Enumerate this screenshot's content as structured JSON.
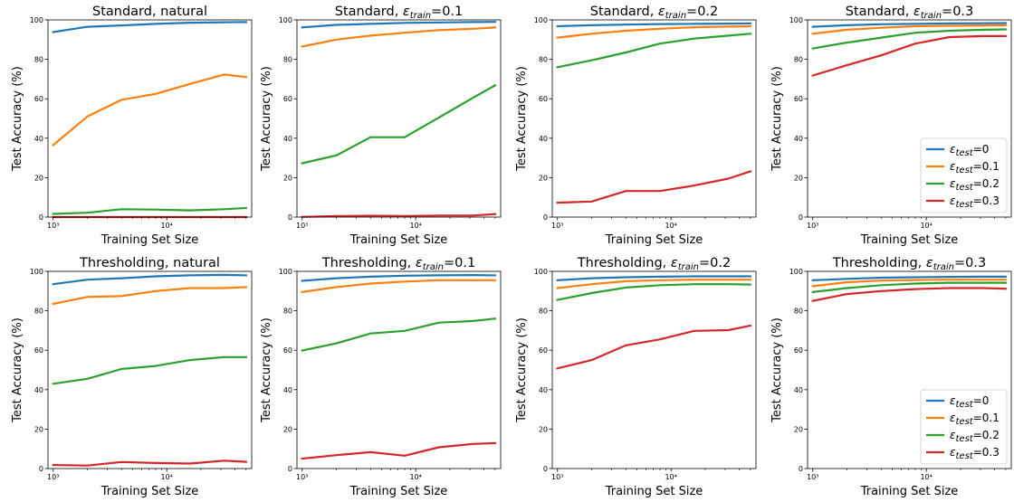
{
  "chart_data": [
    {
      "type": "line",
      "title": "Standard, natural",
      "title_eps": false,
      "xlabel": "Training Set Size",
      "ylabel": "Test Accuracy (%)",
      "xscale": "log",
      "xlim": [
        900,
        56000
      ],
      "ylim": [
        0,
        100
      ],
      "xticks": [
        1000,
        10000
      ],
      "xtick_labels": [
        "10³",
        "10⁴"
      ],
      "yticks": [
        0,
        20,
        40,
        60,
        80,
        100
      ],
      "legend": false,
      "x": [
        1000,
        2000,
        4000,
        8000,
        16000,
        32000,
        50000
      ],
      "series": [
        {
          "color": "#1f77b4",
          "values": [
            93.8,
            96.5,
            97.2,
            98.0,
            98.6,
            98.8,
            98.9
          ]
        },
        {
          "color": "#ff7f0e",
          "values": [
            36.5,
            51.0,
            59.5,
            62.5,
            67.5,
            72.3,
            71.0
          ]
        },
        {
          "color": "#2ca02c",
          "values": [
            1.6,
            2.2,
            4.0,
            3.8,
            3.4,
            4.0,
            4.6
          ]
        },
        {
          "color": "#d62728",
          "values": [
            0.0,
            0.0,
            0.0,
            0.0,
            0.0,
            0.0,
            0.0
          ]
        }
      ]
    },
    {
      "type": "line",
      "title": "Standard, ",
      "title_eps": true,
      "title_value": "0.1",
      "xlabel": "Training Set Size",
      "ylabel": "Test Accuracy (%)",
      "xscale": "log",
      "xlim": [
        900,
        56000
      ],
      "ylim": [
        0,
        100
      ],
      "xticks": [
        1000,
        10000
      ],
      "xtick_labels": [
        "10³",
        "10⁴"
      ],
      "yticks": [
        0,
        20,
        40,
        60,
        80,
        100
      ],
      "legend": false,
      "x": [
        1000,
        2000,
        4000,
        8000,
        16000,
        32000,
        50000
      ],
      "series": [
        {
          "color": "#1f77b4",
          "values": [
            96.2,
            97.5,
            98.0,
            98.5,
            98.7,
            98.9,
            99.0
          ]
        },
        {
          "color": "#ff7f0e",
          "values": [
            86.5,
            90.0,
            92.0,
            93.5,
            94.8,
            95.5,
            96.2
          ]
        },
        {
          "color": "#2ca02c",
          "values": [
            27.3,
            31.3,
            40.5,
            40.5,
            50.5,
            60.5,
            66.8
          ]
        },
        {
          "color": "#d62728",
          "values": [
            0.1,
            0.5,
            0.7,
            0.5,
            0.8,
            0.8,
            1.5
          ]
        }
      ]
    },
    {
      "type": "line",
      "title": "Standard, ",
      "title_eps": true,
      "title_value": "0.2",
      "xlabel": "Training Set Size",
      "ylabel": "Test Accuracy (%)",
      "xscale": "log",
      "xlim": [
        900,
        56000
      ],
      "ylim": [
        0,
        100
      ],
      "xticks": [
        1000,
        10000
      ],
      "xtick_labels": [
        "10³",
        "10⁴"
      ],
      "yticks": [
        0,
        20,
        40,
        60,
        80,
        100
      ],
      "legend": false,
      "x": [
        1000,
        2000,
        4000,
        8000,
        16000,
        32000,
        50000
      ],
      "series": [
        {
          "color": "#1f77b4",
          "values": [
            96.8,
            97.3,
            97.6,
            97.9,
            98.0,
            98.1,
            98.2
          ]
        },
        {
          "color": "#ff7f0e",
          "values": [
            91.0,
            93.0,
            94.5,
            95.5,
            96.3,
            96.6,
            96.8
          ]
        },
        {
          "color": "#2ca02c",
          "values": [
            76.0,
            79.5,
            83.5,
            88.0,
            90.5,
            92.0,
            93.0
          ]
        },
        {
          "color": "#d62728",
          "values": [
            7.3,
            7.9,
            13.2,
            13.2,
            16.0,
            19.5,
            23.2
          ]
        }
      ]
    },
    {
      "type": "line",
      "title": "Standard, ",
      "title_eps": true,
      "title_value": "0.3",
      "xlabel": "Training Set Size",
      "ylabel": "Test Accuracy (%)",
      "xscale": "log",
      "xlim": [
        900,
        56000
      ],
      "ylim": [
        0,
        100
      ],
      "xticks": [
        1000,
        10000
      ],
      "xtick_labels": [
        "10³",
        "10⁴"
      ],
      "yticks": [
        0,
        20,
        40,
        60,
        80,
        100
      ],
      "legend": true,
      "legend_position": "lower-right",
      "x": [
        1000,
        2000,
        4000,
        8000,
        16000,
        32000,
        50000
      ],
      "series": [
        {
          "color": "#1f77b4",
          "values": [
            96.5,
            97.3,
            97.8,
            98.0,
            98.2,
            98.3,
            98.4
          ]
        },
        {
          "color": "#ff7f0e",
          "values": [
            93.0,
            95.0,
            96.0,
            96.8,
            97.0,
            97.2,
            97.3
          ]
        },
        {
          "color": "#2ca02c",
          "values": [
            85.5,
            88.5,
            91.0,
            93.5,
            94.5,
            95.0,
            95.2
          ]
        },
        {
          "color": "#d62728",
          "values": [
            71.8,
            77.0,
            82.0,
            88.0,
            91.3,
            91.8,
            91.8
          ]
        }
      ]
    },
    {
      "type": "line",
      "title": "Thresholding, natural",
      "title_eps": false,
      "xlabel": "Training Set Size",
      "ylabel": "Test Accuracy (%)",
      "xscale": "log",
      "xlim": [
        900,
        56000
      ],
      "ylim": [
        0,
        100
      ],
      "xticks": [
        1000,
        10000
      ],
      "xtick_labels": [
        "10³",
        "10⁴"
      ],
      "yticks": [
        0,
        20,
        40,
        60,
        80,
        100
      ],
      "legend": false,
      "x": [
        1000,
        2000,
        4000,
        8000,
        16000,
        32000,
        50000
      ],
      "series": [
        {
          "color": "#1f77b4",
          "values": [
            93.5,
            95.8,
            96.5,
            97.5,
            98.0,
            98.2,
            98.0
          ]
        },
        {
          "color": "#ff7f0e",
          "values": [
            83.5,
            87.0,
            87.5,
            90.0,
            91.5,
            91.5,
            92.0
          ]
        },
        {
          "color": "#2ca02c",
          "values": [
            43.0,
            45.5,
            50.5,
            52.0,
            55.0,
            56.5,
            56.5
          ]
        },
        {
          "color": "#d62728",
          "values": [
            1.8,
            1.5,
            3.3,
            2.8,
            2.5,
            4.0,
            3.4
          ]
        }
      ]
    },
    {
      "type": "line",
      "title": "Thresholding, ",
      "title_eps": true,
      "title_value": "0.1",
      "xlabel": "Training Set Size",
      "ylabel": "Test Accuracy (%)",
      "xscale": "log",
      "xlim": [
        900,
        56000
      ],
      "ylim": [
        0,
        100
      ],
      "xticks": [
        1000,
        10000
      ],
      "xtick_labels": [
        "10³",
        "10⁴"
      ],
      "yticks": [
        0,
        20,
        40,
        60,
        80,
        100
      ],
      "legend": false,
      "x": [
        1000,
        2000,
        4000,
        8000,
        16000,
        32000,
        50000
      ],
      "series": [
        {
          "color": "#1f77b4",
          "values": [
            95.2,
            96.5,
            97.3,
            97.8,
            98.0,
            98.1,
            98.0
          ]
        },
        {
          "color": "#ff7f0e",
          "values": [
            89.5,
            92.0,
            93.8,
            94.8,
            95.5,
            95.5,
            95.5
          ]
        },
        {
          "color": "#2ca02c",
          "values": [
            59.8,
            63.5,
            68.5,
            69.8,
            74.0,
            74.8,
            76.0
          ]
        },
        {
          "color": "#d62728",
          "values": [
            5.0,
            6.8,
            8.3,
            6.5,
            10.8,
            12.5,
            12.9
          ]
        }
      ]
    },
    {
      "type": "line",
      "title": "Thresholding, ",
      "title_eps": true,
      "title_value": "0.2",
      "xlabel": "Training Set Size",
      "ylabel": "Test Accuracy (%)",
      "xscale": "log",
      "xlim": [
        900,
        56000
      ],
      "ylim": [
        0,
        100
      ],
      "xticks": [
        1000,
        10000
      ],
      "xtick_labels": [
        "10³",
        "10⁴"
      ],
      "yticks": [
        0,
        20,
        40,
        60,
        80,
        100
      ],
      "legend": false,
      "x": [
        1000,
        2000,
        4000,
        8000,
        16000,
        32000,
        50000
      ],
      "series": [
        {
          "color": "#1f77b4",
          "values": [
            95.5,
            96.5,
            97.0,
            97.3,
            97.5,
            97.5,
            97.5
          ]
        },
        {
          "color": "#ff7f0e",
          "values": [
            91.5,
            93.5,
            95.0,
            95.5,
            95.8,
            95.8,
            95.8
          ]
        },
        {
          "color": "#2ca02c",
          "values": [
            85.5,
            89.0,
            91.8,
            93.0,
            93.5,
            93.5,
            93.3
          ]
        },
        {
          "color": "#d62728",
          "values": [
            50.8,
            55.0,
            62.5,
            65.5,
            69.8,
            70.2,
            72.5
          ]
        }
      ]
    },
    {
      "type": "line",
      "title": "Thresholding, ",
      "title_eps": true,
      "title_value": "0.3",
      "xlabel": "Training Set Size",
      "ylabel": "Test Accuracy (%)",
      "xscale": "log",
      "xlim": [
        900,
        56000
      ],
      "ylim": [
        0,
        100
      ],
      "xticks": [
        1000,
        10000
      ],
      "xtick_labels": [
        "10³",
        "10⁴"
      ],
      "yticks": [
        0,
        20,
        40,
        60,
        80,
        100
      ],
      "legend": true,
      "legend_position": "lower-right",
      "x": [
        1000,
        2000,
        4000,
        8000,
        16000,
        32000,
        50000
      ],
      "series": [
        {
          "color": "#1f77b4",
          "values": [
            95.5,
            96.2,
            96.8,
            97.0,
            97.2,
            97.3,
            97.3
          ]
        },
        {
          "color": "#ff7f0e",
          "values": [
            92.5,
            94.5,
            95.3,
            95.6,
            95.8,
            95.8,
            95.8
          ]
        },
        {
          "color": "#2ca02c",
          "values": [
            89.5,
            91.5,
            93.0,
            93.8,
            94.2,
            94.2,
            94.2
          ]
        },
        {
          "color": "#d62728",
          "values": [
            85.0,
            88.5,
            90.0,
            91.0,
            91.5,
            91.5,
            91.2
          ]
        }
      ]
    }
  ],
  "legend_labels": [
    "0",
    "0.1",
    "0.2",
    "0.3"
  ],
  "legend_prefix": "ε",
  "legend_sub": "test",
  "title_sub": "train",
  "title_prefix": "ε"
}
